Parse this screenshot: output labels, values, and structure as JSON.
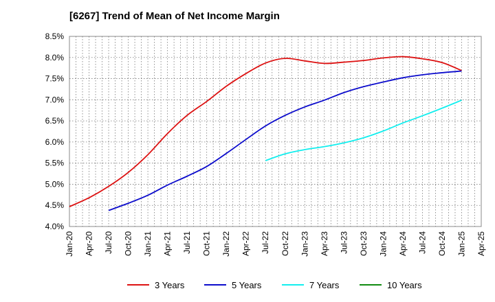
{
  "chart_data": {
    "type": "line",
    "title": "[6267]  Trend of Mean of Net Income Margin",
    "xlabel": "",
    "ylabel": "",
    "x_tick_labels": [
      "Jan-20",
      "Apr-20",
      "Jul-20",
      "Oct-20",
      "Jan-21",
      "Apr-21",
      "Jul-21",
      "Oct-21",
      "Jan-22",
      "Apr-22",
      "Jul-22",
      "Oct-22",
      "Jan-23",
      "Apr-23",
      "Jul-23",
      "Oct-23",
      "Jan-24",
      "Apr-24",
      "Jul-24",
      "Oct-24",
      "Jan-25",
      "Apr-25"
    ],
    "y_tick_labels": [
      "4.0%",
      "4.5%",
      "5.0%",
      "5.5%",
      "6.0%",
      "6.5%",
      "7.0%",
      "7.5%",
      "8.0%",
      "8.5%"
    ],
    "ylim": [
      4.0,
      8.5
    ],
    "grid": true,
    "legend_position": "bottom",
    "series": [
      {
        "name": "3 Years",
        "color": "#dd1111",
        "points": [
          [
            "Jan-20",
            4.47
          ],
          [
            "Apr-20",
            4.68
          ],
          [
            "Jul-20",
            4.95
          ],
          [
            "Oct-20",
            5.28
          ],
          [
            "Jan-21",
            5.7
          ],
          [
            "Apr-21",
            6.2
          ],
          [
            "Jul-21",
            6.63
          ],
          [
            "Oct-21",
            6.96
          ],
          [
            "Jan-22",
            7.32
          ],
          [
            "Apr-22",
            7.62
          ],
          [
            "Jul-22",
            7.87
          ],
          [
            "Oct-22",
            7.98
          ],
          [
            "Jan-23",
            7.92
          ],
          [
            "Apr-23",
            7.86
          ],
          [
            "Jul-23",
            7.89
          ],
          [
            "Oct-23",
            7.93
          ],
          [
            "Jan-24",
            7.99
          ],
          [
            "Apr-24",
            8.02
          ],
          [
            "Jul-24",
            7.97
          ],
          [
            "Oct-24",
            7.88
          ],
          [
            "Jan-25",
            7.69
          ]
        ]
      },
      {
        "name": "5 Years",
        "color": "#0b0bcc",
        "points": [
          [
            "Jul-20",
            4.38
          ],
          [
            "Oct-20",
            4.55
          ],
          [
            "Jan-21",
            4.74
          ],
          [
            "Apr-21",
            4.98
          ],
          [
            "Jul-21",
            5.19
          ],
          [
            "Oct-21",
            5.42
          ],
          [
            "Jan-22",
            5.73
          ],
          [
            "Apr-22",
            6.06
          ],
          [
            "Jul-22",
            6.38
          ],
          [
            "Oct-22",
            6.63
          ],
          [
            "Jan-23",
            6.83
          ],
          [
            "Apr-23",
            6.99
          ],
          [
            "Jul-23",
            7.17
          ],
          [
            "Oct-23",
            7.31
          ],
          [
            "Jan-24",
            7.42
          ],
          [
            "Apr-24",
            7.52
          ],
          [
            "Jul-24",
            7.59
          ],
          [
            "Oct-24",
            7.64
          ],
          [
            "Jan-25",
            7.68
          ]
        ]
      },
      {
        "name": "7 Years",
        "color": "#11eeee",
        "points": [
          [
            "Jul-22",
            5.56
          ],
          [
            "Oct-22",
            5.72
          ],
          [
            "Jan-23",
            5.82
          ],
          [
            "Apr-23",
            5.89
          ],
          [
            "Jul-23",
            5.98
          ],
          [
            "Oct-23",
            6.1
          ],
          [
            "Jan-24",
            6.26
          ],
          [
            "Apr-24",
            6.45
          ],
          [
            "Jul-24",
            6.62
          ],
          [
            "Oct-24",
            6.8
          ],
          [
            "Jan-25",
            6.99
          ]
        ]
      },
      {
        "name": "10 Years",
        "color": "#0f8a0f",
        "points": []
      }
    ]
  }
}
